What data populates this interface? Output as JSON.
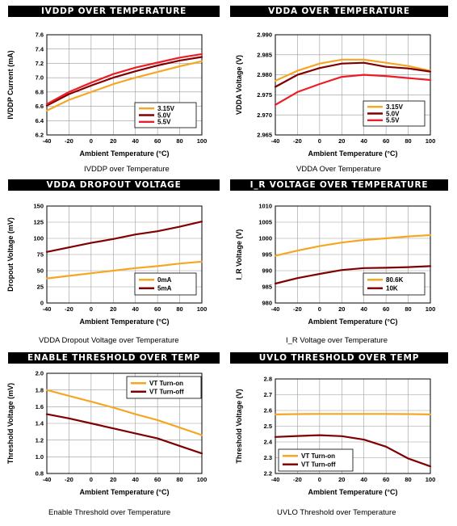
{
  "chart_data": [
    {
      "type": "line",
      "title": "IVDDP OVER TEMPERATURE",
      "caption": "IVDDP over Temperature",
      "xlabel": "Ambient Temperature (°C)",
      "ylabel": "IVDDP Current (mA)",
      "xlim": [
        -40,
        100
      ],
      "ylim": [
        6.2,
        7.6
      ],
      "xticks": [
        -40,
        -20,
        0,
        20,
        40,
        60,
        80,
        100
      ],
      "yticks": [
        6.2,
        6.4,
        6.6,
        6.8,
        7.0,
        7.2,
        7.4,
        7.6
      ],
      "ytick_labels": [
        "6.2",
        "6.4",
        "6.6",
        "6.8",
        "7.0",
        "7.2",
        "7.4",
        "7.6"
      ],
      "legend_position": "bottom-right",
      "grid": true,
      "x": [
        -40,
        -20,
        0,
        20,
        40,
        60,
        80,
        100
      ],
      "series": [
        {
          "name": "3.15V",
          "color": "#f5a623",
          "values": [
            6.54,
            6.69,
            6.8,
            6.91,
            7.0,
            7.08,
            7.16,
            7.23
          ]
        },
        {
          "name": "5.0V",
          "color": "#800000",
          "values": [
            6.61,
            6.77,
            6.89,
            7.0,
            7.09,
            7.17,
            7.24,
            7.29
          ]
        },
        {
          "name": "5.5V",
          "color": "#ee1c25",
          "values": [
            6.63,
            6.8,
            6.93,
            7.05,
            7.14,
            7.21,
            7.28,
            7.33
          ]
        }
      ]
    },
    {
      "type": "line",
      "title": "VDDA OVER TEMPERATURE",
      "caption": "VDDA Over Temperature",
      "xlabel": "Ambient Temperature (°C)",
      "ylabel": "VDDA Voltage (V)",
      "xlim": [
        -40,
        100
      ],
      "ylim": [
        2.965,
        2.99
      ],
      "xticks": [
        -40,
        -20,
        0,
        20,
        40,
        60,
        80,
        100
      ],
      "yticks": [
        2.965,
        2.97,
        2.975,
        2.98,
        2.985,
        2.99
      ],
      "ytick_labels": [
        "2.965",
        "2.970",
        "2.975",
        "2.980",
        "2.985",
        "2.990"
      ],
      "legend_position": "bottom-right",
      "grid": true,
      "x": [
        -40,
        -20,
        0,
        20,
        40,
        60,
        80,
        100
      ],
      "series": [
        {
          "name": "3.15V",
          "color": "#f5a623",
          "values": [
            2.9785,
            2.981,
            2.9828,
            2.9838,
            2.9838,
            2.983,
            2.9822,
            2.981
          ]
        },
        {
          "name": "5.0V",
          "color": "#800000",
          "values": [
            2.977,
            2.98,
            2.9817,
            2.9828,
            2.983,
            2.982,
            2.9816,
            2.9808
          ]
        },
        {
          "name": "5.5V",
          "color": "#ee1c25",
          "values": [
            2.9725,
            2.9757,
            2.9777,
            2.9795,
            2.98,
            2.9797,
            2.9792,
            2.9787
          ]
        }
      ]
    },
    {
      "type": "line",
      "title": "VDDA DROPOUT VOLTAGE",
      "caption": "VDDA Dropout Voltage over Temperature",
      "xlabel": "Ambient Temperature (°C)",
      "ylabel": "Dropout Voltage (mV)",
      "xlim": [
        -40,
        100
      ],
      "ylim": [
        0,
        150
      ],
      "xticks": [
        -40,
        -20,
        0,
        20,
        40,
        60,
        80,
        100
      ],
      "yticks": [
        0,
        25,
        50,
        75,
        100,
        125,
        150
      ],
      "ytick_labels": [
        "0",
        "25",
        "50",
        "75",
        "100",
        "125",
        "150"
      ],
      "legend_position": "bottom-right",
      "grid": true,
      "x": [
        -40,
        -20,
        0,
        20,
        40,
        60,
        80,
        100
      ],
      "series": [
        {
          "name": "0mA",
          "color": "#f5a623",
          "values": [
            38,
            42,
            46,
            50,
            54,
            57,
            61,
            64
          ]
        },
        {
          "name": "5mA",
          "color": "#800000",
          "values": [
            79,
            86,
            93,
            99,
            106,
            111,
            118,
            126
          ]
        }
      ]
    },
    {
      "type": "line",
      "title": "I_R VOLTAGE OVER TEMPERATURE",
      "caption": "I_R Voltage over Temperature",
      "xlabel": "Ambient Temperature (°C)",
      "ylabel": "I_R Voltage (V)",
      "xlim": [
        -40,
        100
      ],
      "ylim": [
        980,
        1010
      ],
      "xticks": [
        -40,
        -20,
        0,
        20,
        40,
        60,
        80,
        100
      ],
      "yticks": [
        980,
        985,
        990,
        995,
        1000,
        1005,
        1010
      ],
      "ytick_labels": [
        "980",
        "985",
        "990",
        "995",
        "1000",
        "1005",
        "1010"
      ],
      "legend_position": "bottom-right",
      "grid": true,
      "x": [
        -40,
        -20,
        0,
        20,
        40,
        60,
        80,
        100
      ],
      "series": [
        {
          "name": "80.6K",
          "color": "#f5a623",
          "values": [
            994.6,
            996.2,
            997.6,
            998.7,
            999.5,
            1000.0,
            1000.6,
            1001.0
          ]
        },
        {
          "name": "10K",
          "color": "#800000",
          "values": [
            986.0,
            987.7,
            989.0,
            990.2,
            990.8,
            990.9,
            991.1,
            991.4
          ]
        }
      ]
    },
    {
      "type": "line",
      "title": "ENABLE THRESHOLD OVER TEMP",
      "caption": "Enable Threshold over Temperature",
      "xlabel": "Ambient Temperature (°C)",
      "ylabel": "Threshold Voltage (mV)",
      "xlim": [
        -40,
        100
      ],
      "ylim": [
        0.8,
        2.0
      ],
      "xticks": [
        -40,
        -20,
        0,
        20,
        40,
        60,
        80,
        100
      ],
      "yticks": [
        0.8,
        1.0,
        1.2,
        1.4,
        1.6,
        1.8,
        2.0
      ],
      "ytick_labels": [
        "0.8",
        "1.0",
        "1.2",
        "1.4",
        "1.6",
        "1.8",
        "2.0"
      ],
      "legend_position": "top-right",
      "grid": true,
      "x": [
        -40,
        -20,
        0,
        20,
        40,
        60,
        80,
        100
      ],
      "series": [
        {
          "name": "VT Turn-on",
          "color": "#f5a623",
          "values": [
            1.8,
            1.73,
            1.66,
            1.59,
            1.51,
            1.44,
            1.35,
            1.26
          ]
        },
        {
          "name": "VT Turn-off",
          "color": "#800000",
          "values": [
            1.51,
            1.46,
            1.4,
            1.34,
            1.28,
            1.22,
            1.13,
            1.04
          ]
        }
      ]
    },
    {
      "type": "line",
      "title": "UVLO THRESHOLD OVER TEMP",
      "caption": "UVLO Threshold over Temperature",
      "xlabel": "Ambient Temperature (°C)",
      "ylabel": "Threshold Voltage (V)",
      "xlim": [
        -40,
        100
      ],
      "ylim": [
        2.2,
        2.8
      ],
      "xticks": [
        -40,
        -20,
        0,
        20,
        40,
        60,
        80,
        100
      ],
      "yticks": [
        2.2,
        2.3,
        2.4,
        2.5,
        2.6,
        2.7,
        2.8
      ],
      "ytick_labels": [
        "2.2",
        "2.3",
        "2.4",
        "2.5",
        "2.6",
        "2.7",
        "2.8"
      ],
      "legend_position": "bottom-center",
      "grid": true,
      "x": [
        -40,
        -20,
        0,
        20,
        40,
        60,
        80,
        100
      ],
      "series": [
        {
          "name": "VT Turn-on",
          "color": "#f5a623",
          "values": [
            2.575,
            2.577,
            2.578,
            2.578,
            2.578,
            2.578,
            2.577,
            2.575
          ]
        },
        {
          "name": "VT Turn-off",
          "color": "#800000",
          "values": [
            2.432,
            2.438,
            2.443,
            2.437,
            2.415,
            2.37,
            2.295,
            2.245
          ]
        }
      ]
    }
  ]
}
